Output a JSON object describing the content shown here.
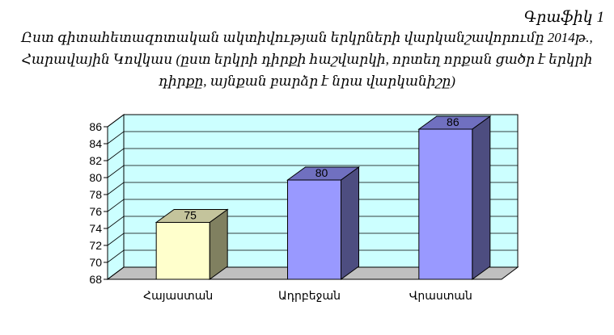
{
  "figure_label": "Գրաֆիկ 1",
  "title_lines": [
    "Ըստ գիտահետազոտական ակտիվության երկրների վարկանշավորումը 2014թ.,",
    "Հարավային Կովկաս (ըստ երկրի դիրքի հաշվարկի, որտեղ որքան ցածր է երկրի",
    "դիրքը, այնքան բարձր է նրա վարկանիշը)"
  ],
  "chart_data": {
    "type": "bar",
    "categories": [
      "Հայաստան",
      "Ադրբեջան",
      "Վրաստան"
    ],
    "values": [
      75,
      80,
      86
    ],
    "data_labels": [
      "75",
      "80",
      "86"
    ],
    "ylim": [
      68,
      86
    ],
    "yticks": [
      "68",
      "70",
      "72",
      "74",
      "76",
      "78",
      "80",
      "82",
      "84",
      "86"
    ],
    "grid": true,
    "three_d": true,
    "colors": {
      "background_wall": "#ccffff",
      "floor": "#c0c0c0",
      "bar_1": "#ffffcc",
      "bar_2_3": "#9999ff"
    }
  }
}
